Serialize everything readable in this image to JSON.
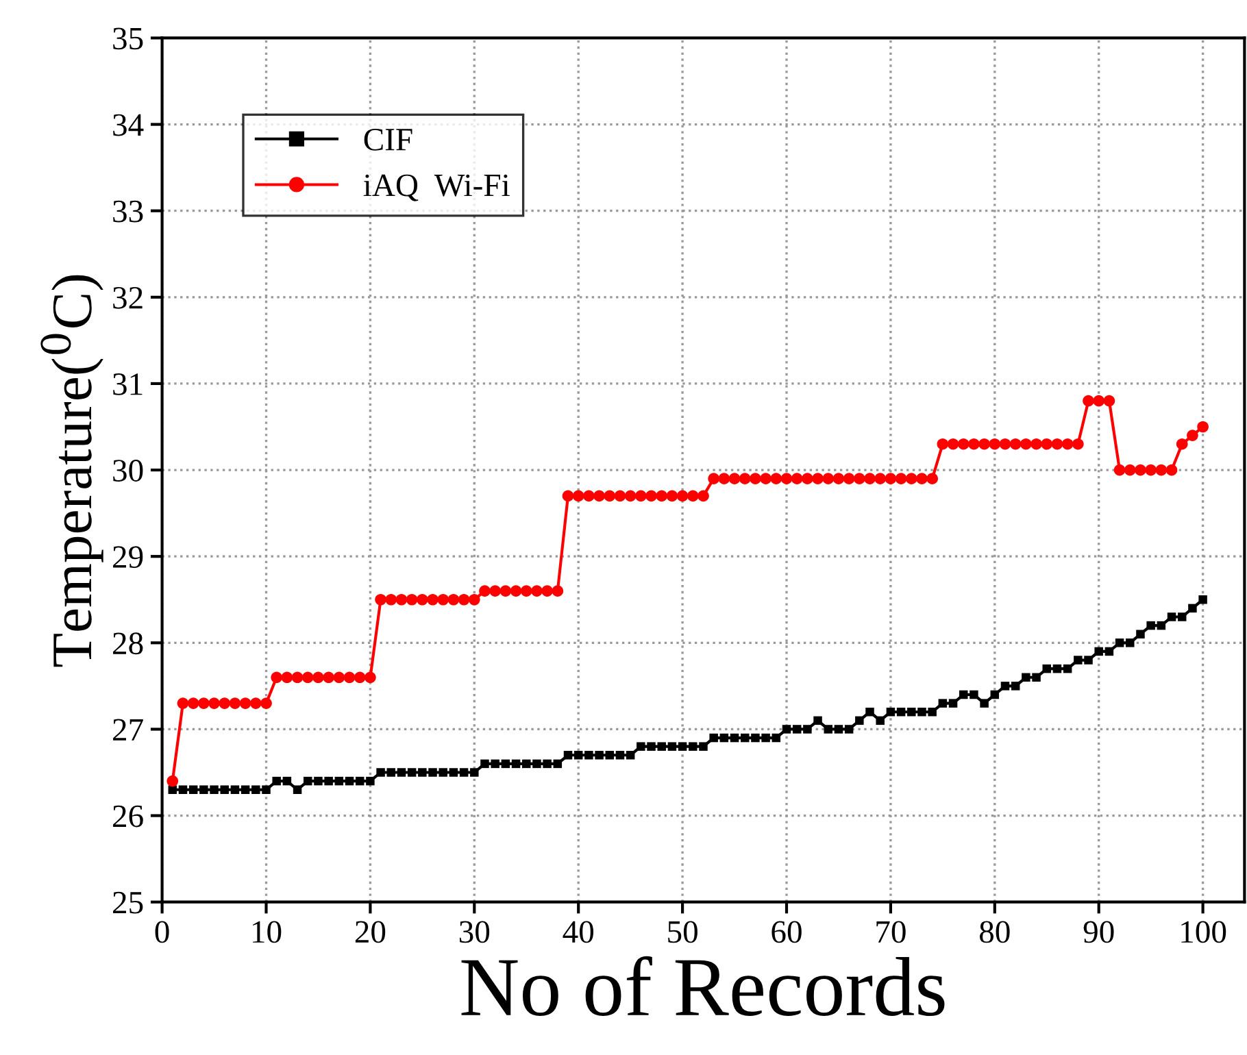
{
  "chart_data": {
    "type": "line",
    "xlabel": "No of Records",
    "ylabel": "Temperature($^{0}$C)",
    "x": [
      1,
      2,
      3,
      4,
      5,
      6,
      7,
      8,
      9,
      10,
      11,
      12,
      13,
      14,
      15,
      16,
      17,
      18,
      19,
      20,
      21,
      22,
      23,
      24,
      25,
      26,
      27,
      28,
      29,
      30,
      31,
      32,
      33,
      34,
      35,
      36,
      37,
      38,
      39,
      40,
      41,
      42,
      43,
      44,
      45,
      46,
      47,
      48,
      49,
      50,
      51,
      52,
      53,
      54,
      55,
      56,
      57,
      58,
      59,
      60,
      61,
      62,
      63,
      64,
      65,
      66,
      67,
      68,
      69,
      70,
      71,
      72,
      73,
      74,
      75,
      76,
      77,
      78,
      79,
      80,
      81,
      82,
      83,
      84,
      85,
      86,
      87,
      88,
      89,
      90,
      91,
      92,
      93,
      94,
      95,
      96,
      97,
      98,
      99,
      100
    ],
    "series": [
      {
        "name": "CIF",
        "color": "#000000",
        "marker": "square",
        "values": [
          26.3,
          26.3,
          26.3,
          26.3,
          26.3,
          26.3,
          26.3,
          26.3,
          26.3,
          26.3,
          26.4,
          26.4,
          26.3,
          26.4,
          26.4,
          26.4,
          26.4,
          26.4,
          26.4,
          26.4,
          26.5,
          26.5,
          26.5,
          26.5,
          26.5,
          26.5,
          26.5,
          26.5,
          26.5,
          26.5,
          26.6,
          26.6,
          26.6,
          26.6,
          26.6,
          26.6,
          26.6,
          26.6,
          26.7,
          26.7,
          26.7,
          26.7,
          26.7,
          26.7,
          26.7,
          26.8,
          26.8,
          26.8,
          26.8,
          26.8,
          26.8,
          26.8,
          26.9,
          26.9,
          26.9,
          26.9,
          26.9,
          26.9,
          26.9,
          27.0,
          27.0,
          27.0,
          27.1,
          27.0,
          27.0,
          27.0,
          27.1,
          27.2,
          27.1,
          27.2,
          27.2,
          27.2,
          27.2,
          27.2,
          27.3,
          27.3,
          27.4,
          27.4,
          27.3,
          27.4,
          27.5,
          27.5,
          27.6,
          27.6,
          27.7,
          27.7,
          27.7,
          27.8,
          27.8,
          27.9,
          27.9,
          28.0,
          28.0,
          28.1,
          28.2,
          28.2,
          28.3,
          28.3,
          28.4,
          28.5
        ]
      },
      {
        "name": "iAQ  Wi-Fi",
        "color": "#ff0000",
        "marker": "circle",
        "values": [
          26.4,
          27.3,
          27.3,
          27.3,
          27.3,
          27.3,
          27.3,
          27.3,
          27.3,
          27.3,
          27.6,
          27.6,
          27.6,
          27.6,
          27.6,
          27.6,
          27.6,
          27.6,
          27.6,
          27.6,
          28.5,
          28.5,
          28.5,
          28.5,
          28.5,
          28.5,
          28.5,
          28.5,
          28.5,
          28.5,
          28.6,
          28.6,
          28.6,
          28.6,
          28.6,
          28.6,
          28.6,
          28.6,
          29.7,
          29.7,
          29.7,
          29.7,
          29.7,
          29.7,
          29.7,
          29.7,
          29.7,
          29.7,
          29.7,
          29.7,
          29.7,
          29.7,
          29.9,
          29.9,
          29.9,
          29.9,
          29.9,
          29.9,
          29.9,
          29.9,
          29.9,
          29.9,
          29.9,
          29.9,
          29.9,
          29.9,
          29.9,
          29.9,
          29.9,
          29.9,
          29.9,
          29.9,
          29.9,
          29.9,
          30.3,
          30.3,
          30.3,
          30.3,
          30.3,
          30.3,
          30.3,
          30.3,
          30.3,
          30.3,
          30.3,
          30.3,
          30.3,
          30.3,
          30.8,
          30.8,
          30.8,
          30.0,
          30.0,
          30.0,
          30.0,
          30.0,
          30.0,
          30.3,
          30.4,
          30.5
        ]
      }
    ],
    "xlim": [
      0,
      104
    ],
    "xticks": [
      0,
      10,
      20,
      30,
      40,
      50,
      60,
      70,
      80,
      90,
      100
    ],
    "ylim": [
      25,
      35
    ],
    "yticks": [
      25,
      26,
      27,
      28,
      29,
      30,
      31,
      32,
      33,
      34,
      35
    ],
    "grid": true,
    "legend": "top left",
    "line_style": "solid"
  }
}
